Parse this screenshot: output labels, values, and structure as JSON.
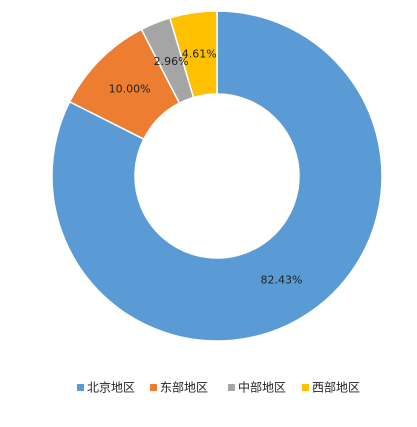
{
  "chart_data": {
    "type": "donut",
    "categories": [
      "北京地区",
      "东部地区",
      "中部地区",
      "西部地区"
    ],
    "values": [
      82.43,
      10.0,
      2.96,
      4.61
    ],
    "value_labels": [
      "82.43%",
      "10.00%",
      "2.96%",
      "4.61%"
    ],
    "colors": [
      "#5b9bd5",
      "#ed7d31",
      "#a5a5a5",
      "#ffc000"
    ],
    "legend": "bottom"
  }
}
